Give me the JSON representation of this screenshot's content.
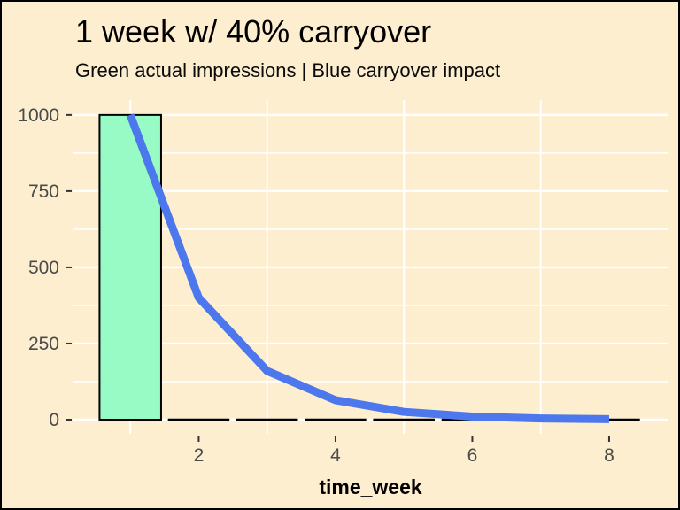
{
  "title": "1 week w/ 40% carryover",
  "subtitle": "Green actual impressions | Blue carryover impact",
  "colors": {
    "background": "#FDEECF",
    "gridline": "#FFFFFF",
    "bar_fill": "#98FBC5",
    "bar_stroke": "#000000",
    "line": "#4C77ED",
    "axis_text": "#4A4A4A",
    "tick_mark": "#333333",
    "border": "#000000"
  },
  "chart_data": {
    "type": "bar+line",
    "title": "1 week w/ 40% carryover",
    "subtitle": "Green actual impressions | Blue carryover impact",
    "xlabel": "time_week",
    "ylabel": "",
    "x": [
      1,
      2,
      3,
      4,
      5,
      6,
      7,
      8
    ],
    "series": [
      {
        "name": "actual impressions",
        "type": "bar",
        "color_key": "bar_fill",
        "values": [
          1000,
          0,
          0,
          0,
          0,
          0,
          0,
          0
        ]
      },
      {
        "name": "carryover impact",
        "type": "line",
        "color_key": "line",
        "values": [
          1000,
          400,
          160,
          64,
          25.6,
          10.24,
          4.096,
          1.6384
        ]
      }
    ],
    "bar_width": 0.9,
    "x_ticks": [
      2,
      4,
      6,
      8
    ],
    "y_ticks": [
      0,
      250,
      500,
      750,
      1000
    ],
    "y_minor_gridlines": [
      125,
      375,
      625,
      875
    ],
    "x_minor_gridlines": [
      1,
      3,
      5,
      7
    ],
    "xlim": [
      0.169,
      8.855
    ],
    "ylim": [
      -46.5,
      1049
    ],
    "grid": "on",
    "legend": "none"
  }
}
